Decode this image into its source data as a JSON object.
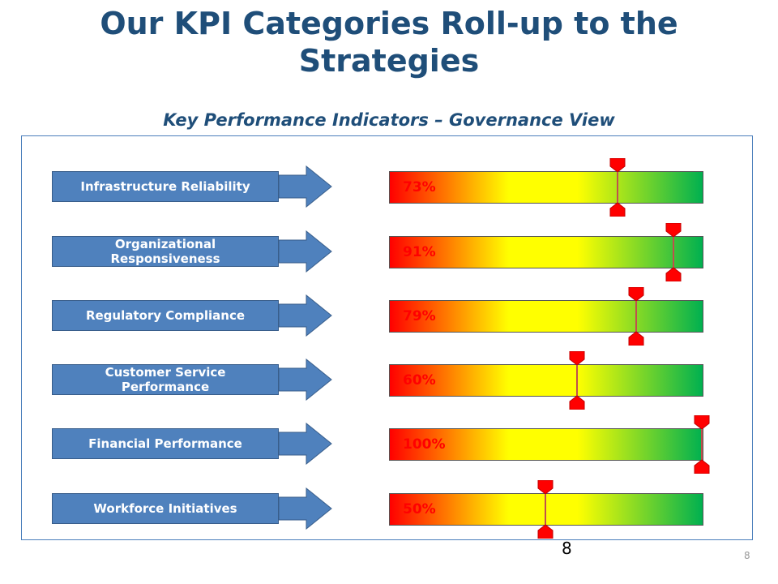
{
  "slide": {
    "title_line1": "Our KPI Categories Roll-up to the",
    "title_line2": "Strategies",
    "subtitle": "Key Performance Indicators – Governance View",
    "page_number": "8",
    "corner_number": "8"
  },
  "kpis": [
    {
      "label": "Infrastructure Reliability",
      "value_text": "73%",
      "value": 0.73
    },
    {
      "label": "Organizational Responsiveness",
      "value_text": "91%",
      "value": 0.91
    },
    {
      "label": "Regulatory Compliance",
      "value_text": "79%",
      "value": 0.79
    },
    {
      "label": "Customer Service Performance",
      "value_text": "60%",
      "value": 0.6
    },
    {
      "label": "Financial Performance",
      "value_text": "100%",
      "value": 1.0
    },
    {
      "label": "Workforce Initiatives",
      "value_text": "50%",
      "value": 0.5
    }
  ],
  "colors": {
    "title": "#1f4e79",
    "category_box": "#4f81bd",
    "arrow": "#4f81bd",
    "gauge_low": "#ff0000",
    "gauge_mid": "#ffff00",
    "gauge_high": "#00b050",
    "marker": "#ff0000"
  }
}
